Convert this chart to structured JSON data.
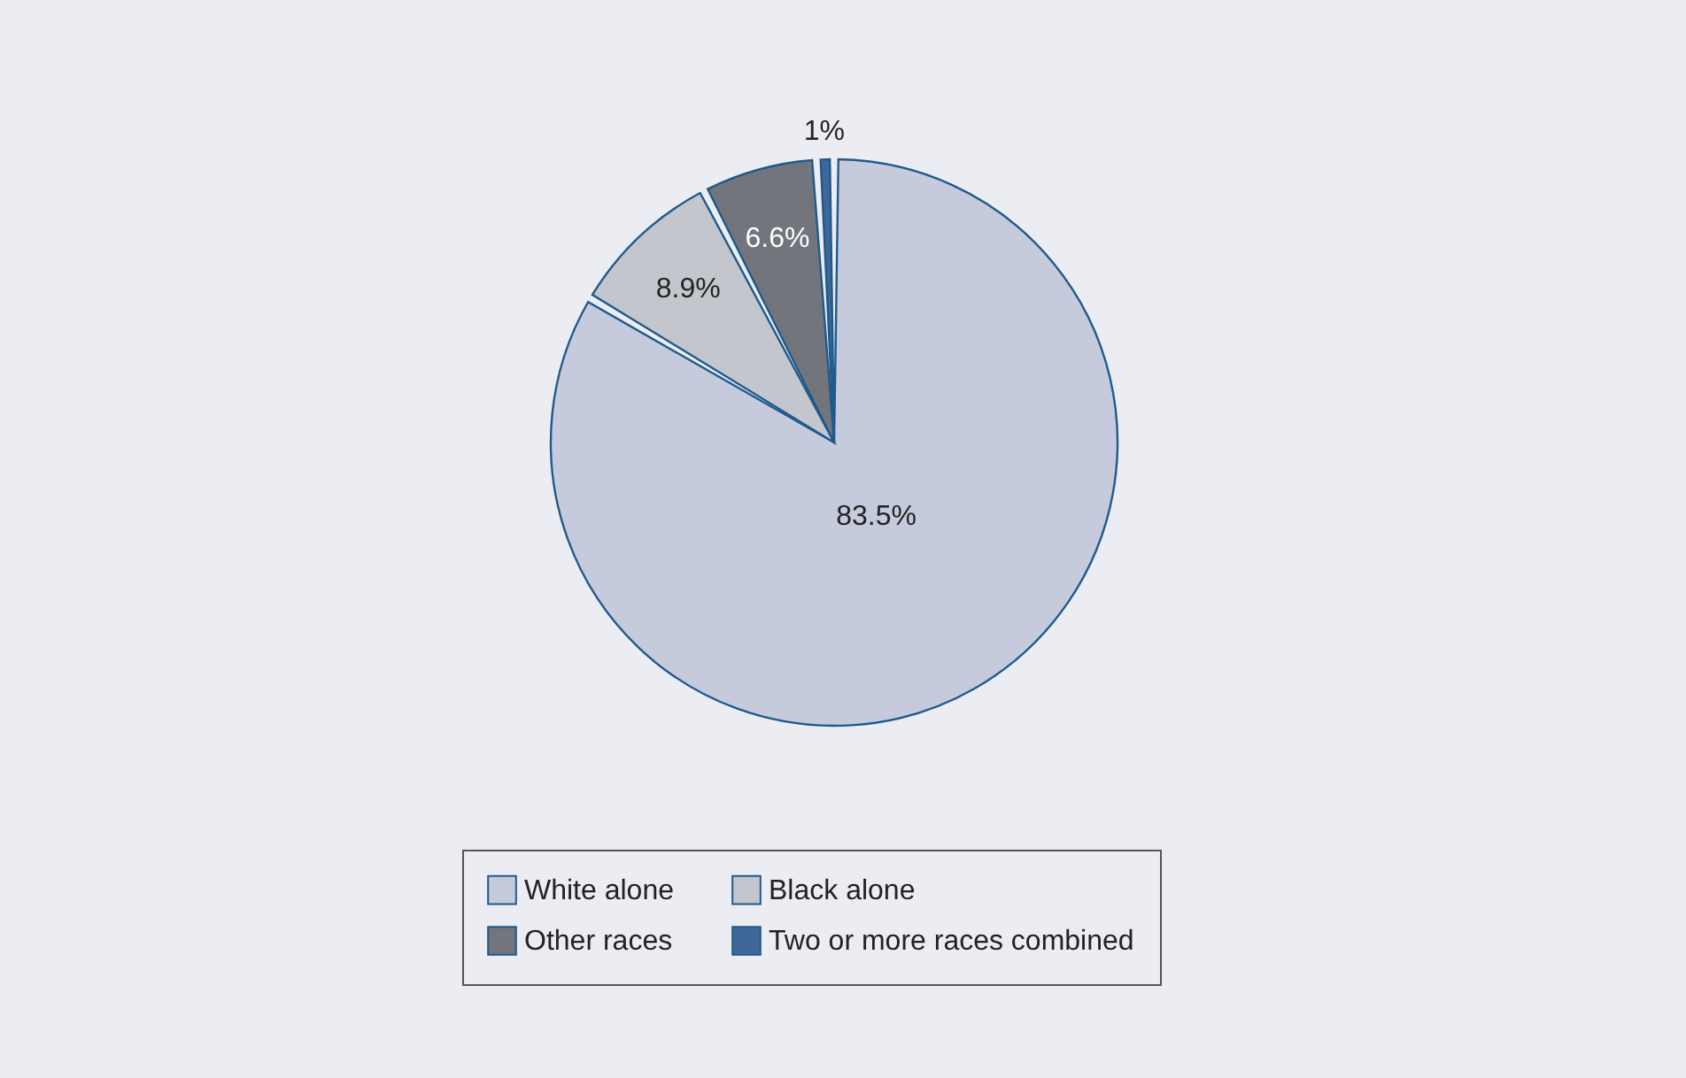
{
  "chart_data": {
    "type": "pie",
    "categories": [
      "White alone",
      "Black alone",
      "Other races",
      "Two or more races combined"
    ],
    "values": [
      83.5,
      8.9,
      6.6,
      1
    ],
    "colors": [
      "#c5cbdd",
      "#c3c6cc",
      "#72757c",
      "#3f6898"
    ],
    "value_labels": [
      "83.5%",
      "8.9%",
      "6.6%",
      "1%"
    ],
    "legend": "bottom"
  }
}
